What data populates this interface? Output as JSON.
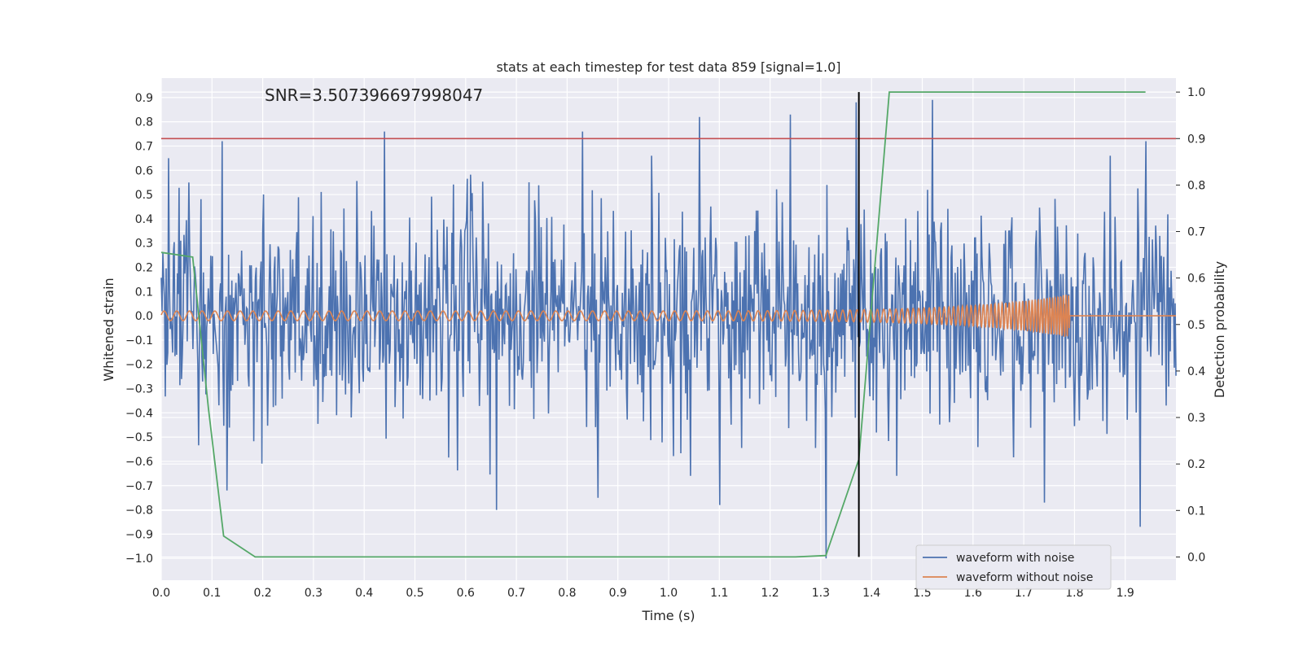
{
  "chart_data": {
    "type": "line",
    "title": "stats at each timestep for test data 859 [signal=1.0]",
    "xlabel": "Time (s)",
    "ylabel_left": "Whitened strain",
    "ylabel_right": "Detection probability",
    "annotation": "SNR=3.507396697998047",
    "xlim": [
      0.0,
      2.0
    ],
    "ylim_left": [
      -1.09,
      0.98
    ],
    "ylim_right": [
      -0.05,
      1.03
    ],
    "x_ticks": [
      "0.0",
      "0.1",
      "0.2",
      "0.3",
      "0.4",
      "0.5",
      "0.6",
      "0.7",
      "0.8",
      "0.9",
      "1.0",
      "1.1",
      "1.2",
      "1.3",
      "1.4",
      "1.5",
      "1.6",
      "1.7",
      "1.8",
      "1.9"
    ],
    "y_ticks_left": [
      "0.9",
      "0.8",
      "0.7",
      "0.6",
      "0.5",
      "0.4",
      "0.3",
      "0.2",
      "0.1",
      "0.0",
      "−0.1",
      "−0.2",
      "−0.3",
      "−0.4",
      "−0.5",
      "−0.6",
      "−0.7",
      "−0.8",
      "−0.9",
      "−1.0"
    ],
    "y_ticks_right": [
      "1.0",
      "0.9",
      "0.8",
      "0.7",
      "0.6",
      "0.5",
      "0.4",
      "0.3",
      "0.2",
      "0.1",
      "0.0"
    ],
    "threshold": {
      "axis": "right",
      "value": 0.9,
      "color": "#c44e52"
    },
    "vertical_marker": {
      "x": 1.375,
      "color": "#000000"
    },
    "series": [
      {
        "name": "waveform with noise",
        "color": "#4c72b0",
        "axis": "left",
        "description": "noisy whitened strain, dense oscillation mostly within [-0.6, 0.6]",
        "peaks": [
          [
            0.015,
            0.65
          ],
          [
            0.055,
            0.55
          ],
          [
            0.12,
            0.72
          ],
          [
            0.44,
            0.76
          ],
          [
            0.83,
            0.76
          ],
          [
            1.06,
            0.82
          ],
          [
            1.24,
            0.83
          ],
          [
            1.37,
            0.88
          ],
          [
            1.52,
            0.89
          ],
          [
            1.94,
            0.72
          ],
          [
            0.13,
            -0.72
          ],
          [
            0.66,
            -0.8
          ],
          [
            0.86,
            -0.75
          ],
          [
            1.1,
            -0.78
          ],
          [
            1.31,
            -1.0
          ],
          [
            1.74,
            -0.77
          ],
          [
            1.93,
            -0.87
          ]
        ]
      },
      {
        "name": "waveform without noise",
        "color": "#dd8452",
        "axis": "left",
        "description": "clean chirp signal, amplitude ~0.02 rising to ~0.09 near 1.78 s, then flat at 0",
        "chirp": {
          "t_merge": 1.79,
          "amp_start": 0.02,
          "amp_peak": 0.09,
          "freq_start": 40,
          "freq_end": 200
        }
      },
      {
        "name": "detection probability",
        "color": "#55a868",
        "axis": "right",
        "x": [
          0.0,
          0.062,
          0.093,
          0.123,
          0.185,
          1.25,
          1.31,
          1.375,
          1.435,
          1.94
        ],
        "y": [
          0.655,
          0.645,
          0.32,
          0.045,
          0.0,
          0.0,
          0.003,
          0.21,
          1.0,
          1.0
        ]
      }
    ]
  }
}
